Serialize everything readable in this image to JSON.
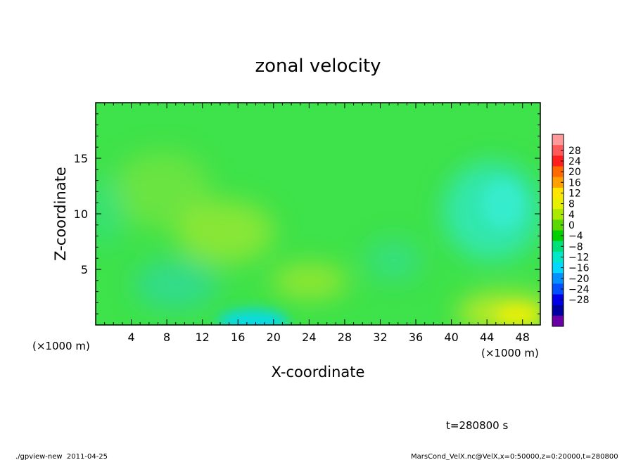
{
  "chart_data": {
    "type": "heatmap",
    "title": "zonal velocity",
    "xlabel": "X-coordinate",
    "ylabel": "Z-coordinate",
    "x_unit_left": "(×1000 m)",
    "x_unit_right": "(×1000 m)",
    "xlim": [
      0,
      50
    ],
    "ylim": [
      0,
      20
    ],
    "x_ticks": [
      4,
      8,
      12,
      16,
      20,
      24,
      28,
      32,
      36,
      40,
      44,
      48
    ],
    "x_tick_labels": [
      "4",
      "8",
      "12",
      "16",
      "20",
      "24",
      "28",
      "32",
      "36",
      "40",
      "44",
      "48"
    ],
    "y_ticks": [
      5,
      10,
      15
    ],
    "y_tick_labels": [
      "5",
      "10",
      "15"
    ],
    "colorbar": {
      "labels": [
        "28",
        "24",
        "20",
        "16",
        "12",
        "8",
        "4",
        "0",
        "−4",
        "−8",
        "−12",
        "−16",
        "−20",
        "−24",
        "−28"
      ],
      "colors": [
        "#ff9a9a",
        "#ff5a5a",
        "#ff1e1e",
        "#ff6a00",
        "#ffa000",
        "#ffe600",
        "#e6f000",
        "#aaea00",
        "#5ad800",
        "#00d000",
        "#00e07a",
        "#00e8c8",
        "#00d8ff",
        "#0090ff",
        "#0050ff",
        "#0000e6",
        "#0000a0",
        "#6a00a8"
      ]
    },
    "field_summary": [
      {
        "region": "background",
        "value": -2
      },
      {
        "x": 8,
        "z": 11,
        "value": 4
      },
      {
        "x": 15,
        "z": 8,
        "value": 5
      },
      {
        "x": 24,
        "z": 4,
        "value": 6
      },
      {
        "x": 9,
        "z": 3,
        "value": -7
      },
      {
        "x": 20,
        "z": 0.5,
        "value": -12
      },
      {
        "x": 46,
        "z": 10,
        "value": -8
      },
      {
        "x": 46,
        "z": 1,
        "value": 10
      }
    ],
    "time_label": "t=280800 s"
  },
  "footer": {
    "left": "./gpview-new  2011-04-25",
    "right": "MarsCond_VelX.nc@VelX,x=0:50000,z=0:20000,t=280800"
  }
}
